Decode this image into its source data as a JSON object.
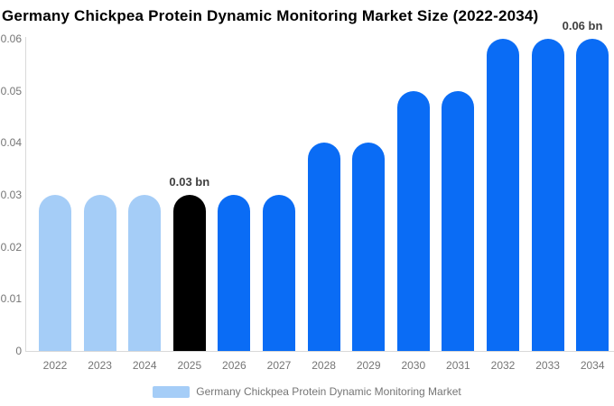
{
  "title": "Germany Chickpea Protein Dynamic Monitoring Market Size (2022-2034)",
  "legend": {
    "label": "Germany Chickpea Protein Dynamic Monitoring Market",
    "swatch_color": "#A5CDF7"
  },
  "colors": {
    "background": "#FFFFFF",
    "title_text": "#000000",
    "historical_bar": "#A5CDF7",
    "highlight_bar": "#000000",
    "forecast_bar": "#0A6CF5",
    "axis_line": "#D9D9D9",
    "tick_label": "#757575",
    "annotation_text": "#404040"
  },
  "chart_data": {
    "type": "bar",
    "title": "Germany Chickpea Protein Dynamic Monitoring Market Size (2022-2034)",
    "categories": [
      "2022",
      "2023",
      "2024",
      "2025",
      "2026",
      "2027",
      "2028",
      "2029",
      "2030",
      "2031",
      "2032",
      "2033",
      "2034"
    ],
    "values": [
      0.03,
      0.03,
      0.03,
      0.03,
      0.03,
      0.03,
      0.04,
      0.04,
      0.05,
      0.05,
      0.06,
      0.06,
      0.06
    ],
    "unit": "bn",
    "bar_color_roles": [
      "historical",
      "historical",
      "historical",
      "highlight",
      "forecast",
      "forecast",
      "forecast",
      "forecast",
      "forecast",
      "forecast",
      "forecast",
      "forecast",
      "forecast"
    ],
    "annotations": [
      {
        "category": "2025",
        "text": "0.03 bn"
      },
      {
        "category": "2034",
        "text": "0.06 bn"
      }
    ],
    "xlabel": "",
    "ylabel": "",
    "ylim": [
      0,
      0.06
    ],
    "y_ticks": [
      0,
      0.01,
      0.02,
      0.03,
      0.04,
      0.05,
      0.06
    ],
    "y_tick_labels": [
      "0",
      "0.01",
      "0.02",
      "0.03",
      "0.04",
      "0.05",
      "0.06"
    ],
    "grid": false,
    "legend_entries": [
      "Germany Chickpea Protein Dynamic Monitoring Market"
    ],
    "legend_position": "bottom"
  }
}
